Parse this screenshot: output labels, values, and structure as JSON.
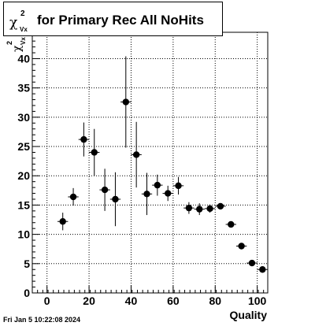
{
  "title": {
    "symbol": "χ",
    "superscript": "2",
    "subscript": "Vx",
    "text": "for Primary Rec All NoHits"
  },
  "footer": "Fri Jan  5 10:22:08 2024",
  "chart_data": {
    "type": "scatter",
    "title": "χ²_Vx for Primary Rec All NoHits",
    "xlabel": "Quality",
    "ylabel": "χ²_Vx",
    "xlim": [
      -7,
      105
    ],
    "ylim": [
      0,
      44.5
    ],
    "grid": true,
    "xticks": [
      0,
      20,
      40,
      60,
      80,
      100
    ],
    "yticks": [
      0,
      5,
      10,
      15,
      20,
      25,
      30,
      35,
      40
    ],
    "ylabel_parts": {
      "symbol": "χ",
      "superscript": "2",
      "subscript": "Vx"
    },
    "series": [
      {
        "x": [
          7.5,
          12.5,
          17.5,
          22.5,
          27.5,
          32.5,
          37.5,
          42.5,
          47.5,
          52.5,
          57.5,
          62.5,
          67.5,
          72.5,
          77.5,
          82.5,
          87.5,
          92.5,
          97.5,
          102.5
        ],
        "y": [
          12.2,
          16.4,
          26.2,
          24.0,
          17.6,
          16.0,
          32.6,
          23.6,
          16.9,
          18.4,
          17.0,
          18.3,
          14.5,
          14.3,
          14.4,
          14.8,
          11.7,
          8.0,
          5.1,
          4.0
        ],
        "yerr": [
          1.5,
          1.5,
          2.9,
          4.0,
          3.6,
          4.6,
          7.8,
          5.6,
          3.6,
          1.8,
          1.3,
          1.5,
          1.0,
          1.0,
          0.7,
          0.3,
          0.4,
          0.3,
          0.3,
          0.3
        ],
        "xerr": 2.5
      }
    ]
  }
}
